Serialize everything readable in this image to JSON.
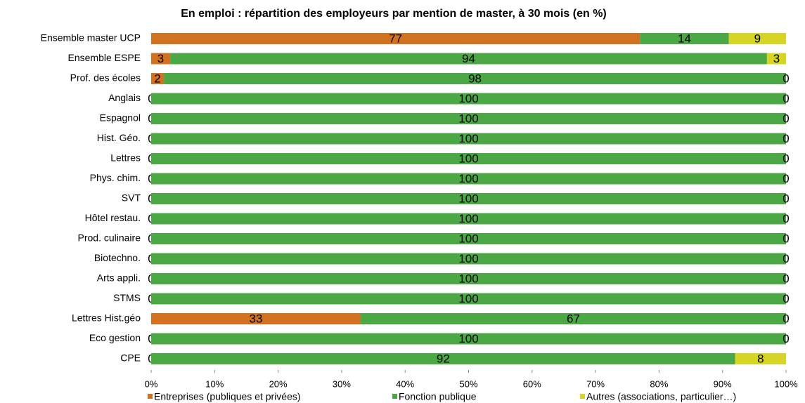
{
  "chart_data": {
    "type": "stacked_barh",
    "title": "En emploi : répartition des employeurs par mention de master, à 30 mois (en %)",
    "categories": [
      "Ensemble master UCP",
      "Ensemble ESPE",
      "Prof. des écoles",
      "Anglais",
      "Espagnol",
      "Hist. Géo.",
      "Lettres",
      "Phys. chim.",
      "SVT",
      "Hôtel restau.",
      "Prod. culinaire",
      "Biotechno.",
      "Arts appli.",
      "STMS",
      "Lettres Hist.géo",
      "Eco gestion",
      "CPE"
    ],
    "series": [
      {
        "name": "Entreprises (publiques et privées)",
        "color": "#d2711f",
        "values": [
          77,
          3,
          2,
          0,
          0,
          0,
          0,
          0,
          0,
          0,
          0,
          0,
          0,
          0,
          33,
          0,
          0
        ]
      },
      {
        "name": "Fonction publique",
        "color": "#4ba845",
        "values": [
          14,
          94,
          98,
          100,
          100,
          100,
          100,
          100,
          100,
          100,
          100,
          100,
          100,
          100,
          67,
          100,
          92
        ]
      },
      {
        "name": "Autres (associations, particulier…)",
        "color": "#d6d526",
        "values": [
          9,
          3,
          0,
          0,
          0,
          0,
          0,
          0,
          0,
          0,
          0,
          0,
          0,
          0,
          0,
          0,
          8
        ]
      }
    ],
    "xlim": [
      0,
      100
    ],
    "xticks": [
      {
        "value": 0,
        "label": "0%"
      },
      {
        "value": 10,
        "label": "10%"
      },
      {
        "value": 20,
        "label": "20%"
      },
      {
        "value": 30,
        "label": "30%"
      },
      {
        "value": 40,
        "label": "40%"
      },
      {
        "value": 50,
        "label": "50%"
      },
      {
        "value": 60,
        "label": "60%"
      },
      {
        "value": 70,
        "label": "70%"
      },
      {
        "value": 80,
        "label": "80%"
      },
      {
        "value": 90,
        "label": "90%"
      },
      {
        "value": 100,
        "label": "100%"
      }
    ],
    "legend": "bottom"
  }
}
